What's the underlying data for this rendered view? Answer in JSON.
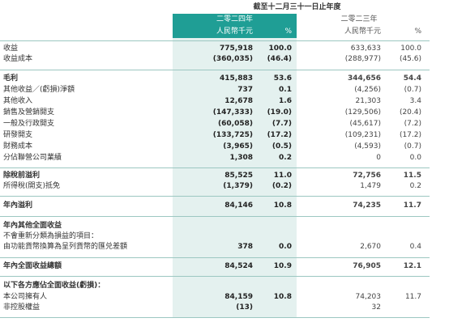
{
  "header": {
    "period": "截至十二月三十一日止年度",
    "year_2024": "二零二四年",
    "year_2023": "二零二三年",
    "columns": [
      "人民幣千元",
      "%",
      "人民幣千元",
      "%"
    ]
  },
  "table": {
    "rows": [
      {
        "label": "收益",
        "values": [
          "775,918",
          "100.0",
          "633,633",
          "100.0"
        ]
      },
      {
        "label": "收益成本",
        "values": [
          "(360,035)",
          "(46.4)",
          "(288,977)",
          "(45.6)"
        ]
      },
      {
        "label": "毛利",
        "values": [
          "415,883",
          "53.6",
          "344,656",
          "54.4"
        ],
        "bold": true
      },
      {
        "label": "其他收益／(虧損)淨額",
        "values": [
          "737",
          "0.1",
          "(4,256)",
          "(0.7)"
        ]
      },
      {
        "label": "其他收入",
        "values": [
          "12,678",
          "1.6",
          "21,303",
          "3.4"
        ]
      },
      {
        "label": "銷售及營銷開支",
        "values": [
          "(147,333)",
          "(19.0)",
          "(129,506)",
          "(20.4)"
        ]
      },
      {
        "label": "一般及行政開支",
        "values": [
          "(60,058)",
          "(7.7)",
          "(45,617)",
          "(7.2)"
        ]
      },
      {
        "label": "研發開支",
        "values": [
          "(133,725)",
          "(17.2)",
          "(109,231)",
          "(17.2)"
        ]
      },
      {
        "label": "財務成本",
        "values": [
          "(3,965)",
          "(0.5)",
          "(4,593)",
          "(0.7)"
        ]
      },
      {
        "label": "分佔聯營公司業績",
        "values": [
          "1,308",
          "0.2",
          "0",
          "0.0"
        ]
      },
      {
        "label": "除稅前溢利",
        "values": [
          "85,525",
          "11.0",
          "72,756",
          "11.5"
        ],
        "bold": true
      },
      {
        "label": "所得稅(開支)抵免",
        "values": [
          "(1,379)",
          "(0.2)",
          "1,479",
          "0.2"
        ]
      },
      {
        "label": "年內溢利",
        "values": [
          "84,146",
          "10.8",
          "74,235",
          "11.7"
        ],
        "bold": true
      },
      {
        "label": "年內其他全面收益",
        "bold": true
      },
      {
        "label": "不會重新分類為損益的項目："
      },
      {
        "label": "由功能貨幣換算為呈列貨幣的匯兑差額",
        "values": [
          "378",
          "0.0",
          "2,670",
          "0.4"
        ]
      },
      {
        "label": "年內全面收益總額",
        "values": [
          "84,524",
          "10.9",
          "76,905",
          "12.1"
        ],
        "bold": true
      },
      {
        "label": "以下各方應佔全面收益(虧損)：",
        "bold": true
      },
      {
        "label": "本公司擁有人",
        "values": [
          "84,159",
          "10.8",
          "74,203",
          "11.7"
        ]
      },
      {
        "label": "非控股權益",
        "values": [
          "(13)",
          null,
          "32",
          null
        ]
      }
    ]
  }
}
